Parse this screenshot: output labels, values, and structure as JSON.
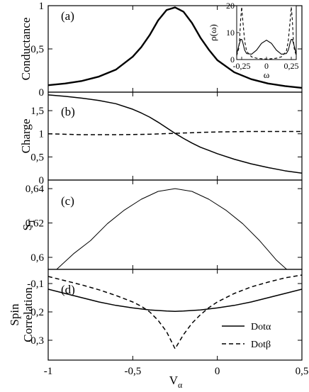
{
  "chart_data": [
    {
      "id": "a",
      "type": "line",
      "panel_label": "(a)",
      "ylabel": "Conductance",
      "xlim": [
        -1,
        0.5
      ],
      "ylim": [
        0,
        1
      ],
      "yticks": [
        0,
        0.5,
        1
      ],
      "ytick_labels": [
        "0",
        "0,5",
        "1"
      ],
      "series": [
        {
          "style": "solid",
          "width": "thick",
          "x": [
            -1.0,
            -0.9,
            -0.8,
            -0.7,
            -0.6,
            -0.5,
            -0.45,
            -0.4,
            -0.35,
            -0.3,
            -0.25,
            -0.2,
            -0.15,
            -0.1,
            -0.05,
            0.0,
            0.1,
            0.2,
            0.3,
            0.4,
            0.5
          ],
          "y": [
            0.08,
            0.1,
            0.13,
            0.18,
            0.26,
            0.41,
            0.52,
            0.66,
            0.83,
            0.95,
            0.98,
            0.93,
            0.8,
            0.63,
            0.49,
            0.37,
            0.23,
            0.15,
            0.1,
            0.07,
            0.05
          ]
        }
      ]
    },
    {
      "id": "inset",
      "type": "line",
      "ylabel": "ρ(ω)",
      "xlabel": "ω",
      "xlim": [
        -0.3,
        0.3
      ],
      "ylim": [
        0,
        20
      ],
      "xticks": [
        -0.25,
        0,
        0.25
      ],
      "xtick_labels": [
        "-0,25",
        "0",
        "0,25"
      ],
      "yticks": [
        0,
        10,
        20
      ],
      "ytick_labels": [
        "0",
        "10",
        "20"
      ],
      "series": [
        {
          "style": "dashed",
          "x": [
            -0.3,
            -0.28,
            -0.27,
            -0.26,
            -0.25,
            -0.24,
            -0.22,
            -0.2,
            -0.15,
            -0.1,
            -0.05,
            0.0,
            0.05,
            0.1,
            0.15,
            0.2,
            0.22,
            0.24,
            0.25,
            0.26,
            0.27,
            0.28,
            0.3
          ],
          "y": [
            1.5,
            4.0,
            8.0,
            15.0,
            19.5,
            15.0,
            7.0,
            3.0,
            1.0,
            0.5,
            0.3,
            0.2,
            0.3,
            0.5,
            1.0,
            3.0,
            7.0,
            15.0,
            19.5,
            15.0,
            8.0,
            4.0,
            1.5
          ]
        },
        {
          "style": "solid",
          "x": [
            -0.3,
            -0.28,
            -0.26,
            -0.25,
            -0.24,
            -0.22,
            -0.2,
            -0.15,
            -0.1,
            -0.05,
            0.0,
            0.05,
            0.1,
            0.15,
            0.2,
            0.22,
            0.24,
            0.25,
            0.26,
            0.28,
            0.3
          ],
          "y": [
            2.0,
            5.0,
            7.5,
            7.5,
            6.5,
            3.5,
            2.2,
            2.0,
            3.5,
            6.0,
            7.2,
            6.0,
            3.5,
            2.0,
            2.2,
            3.5,
            6.5,
            7.5,
            7.5,
            5.0,
            2.0
          ]
        }
      ]
    },
    {
      "id": "b",
      "type": "line",
      "panel_label": "(b)",
      "ylabel": "Charge",
      "xlim": [
        -1,
        0.5
      ],
      "ylim": [
        0,
        1.9
      ],
      "yticks": [
        0,
        0.5,
        1,
        1.5
      ],
      "ytick_labels": [
        "0",
        "0,5",
        "1",
        "1,5"
      ],
      "series": [
        {
          "style": "solid",
          "x": [
            -1.0,
            -0.9,
            -0.8,
            -0.7,
            -0.6,
            -0.5,
            -0.45,
            -0.4,
            -0.35,
            -0.3,
            -0.25,
            -0.2,
            -0.15,
            -0.1,
            -0.05,
            0.0,
            0.1,
            0.2,
            0.3,
            0.4,
            0.5
          ],
          "y": [
            1.84,
            1.81,
            1.77,
            1.72,
            1.65,
            1.53,
            1.45,
            1.36,
            1.25,
            1.13,
            1.01,
            0.9,
            0.8,
            0.71,
            0.64,
            0.57,
            0.45,
            0.35,
            0.27,
            0.2,
            0.15
          ]
        },
        {
          "style": "dashed",
          "x": [
            -1.0,
            -0.8,
            -0.6,
            -0.4,
            -0.25,
            -0.1,
            0.0,
            0.2,
            0.4,
            0.5
          ],
          "y": [
            1.0,
            0.98,
            0.98,
            0.99,
            1.01,
            1.03,
            1.04,
            1.05,
            1.05,
            1.05
          ]
        }
      ]
    },
    {
      "id": "c",
      "type": "line",
      "panel_label": "(c)",
      "ylabel": "S_T",
      "xlim": [
        -1,
        0.5
      ],
      "ylim": [
        0.593,
        0.645
      ],
      "yticks": [
        0.6,
        0.62,
        0.64
      ],
      "ytick_labels": [
        "0,6",
        "0,62",
        "0,64"
      ],
      "series": [
        {
          "style": "solid",
          "width": "thin",
          "x": [
            -0.95,
            -0.85,
            -0.75,
            -0.65,
            -0.55,
            -0.45,
            -0.35,
            -0.25,
            -0.15,
            -0.05,
            0.05,
            0.15,
            0.25,
            0.35,
            0.41
          ],
          "y": [
            0.593,
            0.6021,
            0.6097,
            0.6196,
            0.6275,
            0.6338,
            0.6384,
            0.64,
            0.6384,
            0.6338,
            0.6275,
            0.6196,
            0.6097,
            0.5983,
            0.593
          ]
        }
      ]
    },
    {
      "id": "d",
      "type": "line",
      "panel_label": "(d)",
      "ylabel": "Spin Correlation",
      "ylabel_lines": [
        "Spin",
        "Correlation"
      ],
      "xlabel": "V_α",
      "xlim": [
        -1,
        0.5
      ],
      "ylim": [
        -0.37,
        -0.05
      ],
      "yticks": [
        -0.3,
        -0.2,
        -0.1
      ],
      "ytick_labels": [
        "-0,3",
        "-0,2",
        "-0,1"
      ],
      "xticks": [
        -1,
        -0.5,
        0,
        0.5
      ],
      "xtick_labels": [
        "-1",
        "-0,5",
        "0",
        "0,5"
      ],
      "legend": {
        "placement": "bottom-right"
      },
      "series": [
        {
          "name": "Dotα",
          "style": "solid",
          "x": [
            -1.0,
            -0.9,
            -0.8,
            -0.7,
            -0.6,
            -0.5,
            -0.4,
            -0.3,
            -0.25,
            -0.2,
            -0.1,
            0.0,
            0.1,
            0.2,
            0.3,
            0.4,
            0.5
          ],
          "y": [
            -0.12,
            -0.135,
            -0.15,
            -0.165,
            -0.177,
            -0.186,
            -0.193,
            -0.197,
            -0.198,
            -0.197,
            -0.193,
            -0.186,
            -0.177,
            -0.165,
            -0.15,
            -0.135,
            -0.12
          ]
        },
        {
          "name": "Dotβ",
          "style": "dashed",
          "x": [
            -1.0,
            -0.9,
            -0.8,
            -0.7,
            -0.6,
            -0.5,
            -0.45,
            -0.4,
            -0.35,
            -0.3,
            -0.25,
            -0.2,
            -0.15,
            -0.1,
            -0.05,
            0.0,
            0.1,
            0.2,
            0.3,
            0.4,
            0.5
          ],
          "y": [
            -0.075,
            -0.09,
            -0.105,
            -0.122,
            -0.142,
            -0.165,
            -0.18,
            -0.2,
            -0.23,
            -0.27,
            -0.33,
            -0.28,
            -0.24,
            -0.21,
            -0.185,
            -0.165,
            -0.135,
            -0.112,
            -0.095,
            -0.08,
            -0.07
          ]
        }
      ]
    }
  ]
}
